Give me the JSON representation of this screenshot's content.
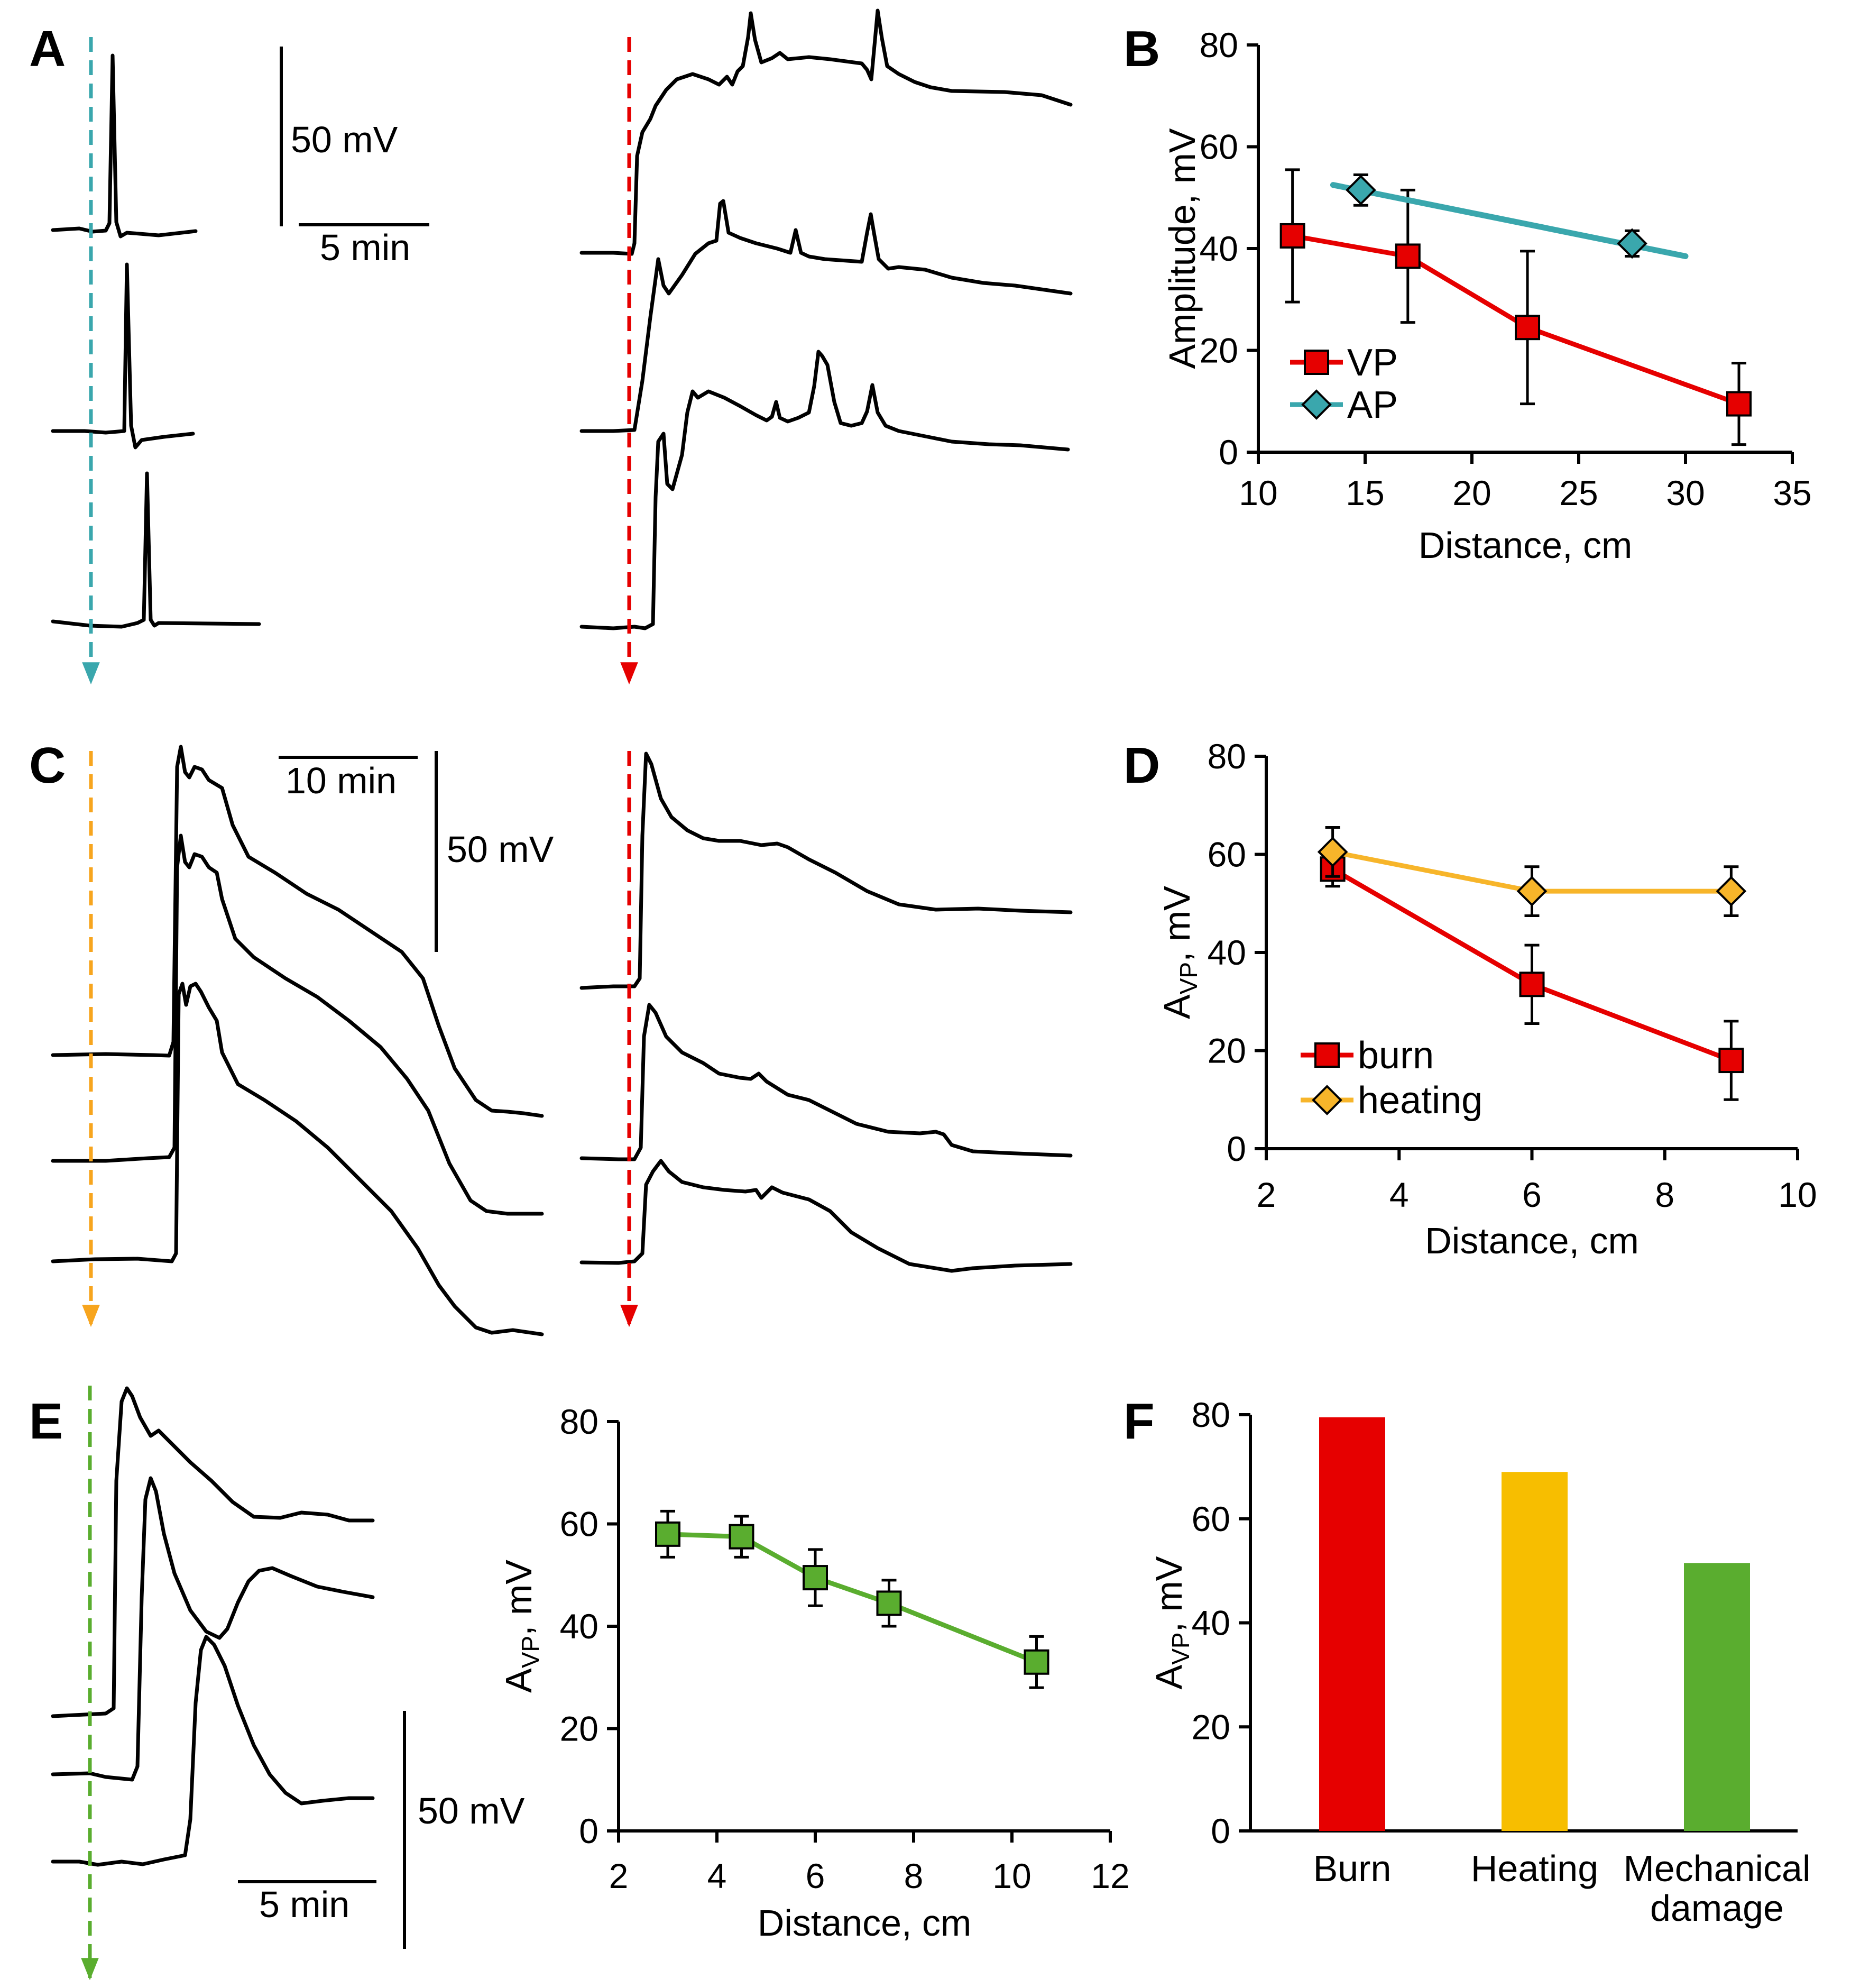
{
  "panels": {
    "A": "A",
    "B": "B",
    "C": "C",
    "D": "D",
    "E": "E",
    "F": "F"
  },
  "scale_bars": {
    "A_voltage": "50 mV",
    "A_time": "5 min",
    "C_time": "10 min",
    "C_voltage": "50 mV",
    "E_voltage": "50 mV",
    "E_time": "5 min"
  },
  "colors": {
    "VP": "#e60000",
    "AP": "#3aa7ad",
    "burn": "#e60000",
    "heating": "#f7b52a",
    "mechanical": "#5aad2f",
    "arrow_A": "#3aa7ad",
    "arrow_red": "#e60000",
    "arrow_C": "#f7a51e",
    "arrow_E": "#5aad2f"
  },
  "chart_data": [
    {
      "id": "B",
      "type": "line",
      "xlabel": "Distance, cm",
      "ylabel": "Amplitude, mV",
      "xlim": [
        10,
        35
      ],
      "ylim": [
        0,
        80
      ],
      "xticks": [
        "10",
        "15",
        "20",
        "25",
        "30",
        "35"
      ],
      "yticks": [
        "0",
        "20",
        "40",
        "60",
        "80"
      ],
      "series": [
        {
          "name": "VP",
          "x": [
            11.6,
            17.0,
            22.6,
            32.5
          ],
          "y": [
            42.5,
            38.5,
            24.5,
            9.5
          ],
          "err": [
            13,
            13,
            15,
            8
          ],
          "marker": "square",
          "color": "#e60000"
        },
        {
          "name": "AP",
          "x": [
            14.8,
            27.5
          ],
          "y": [
            51.5,
            41.0
          ],
          "err": [
            3,
            2.5
          ],
          "marker": "diamond",
          "color": "#3aa7ad",
          "fit_x": [
            13.5,
            30.0
          ],
          "fit_y": [
            52.5,
            38.5
          ]
        }
      ],
      "legend": "bottom-left"
    },
    {
      "id": "D",
      "type": "line",
      "xlabel": "Distance, cm",
      "ylabel": "A",
      "ylabel_sub": "VP",
      "ylabel_suffix": ", mV",
      "xlim": [
        2,
        10
      ],
      "ylim": [
        0,
        80
      ],
      "xticks": [
        "2",
        "4",
        "6",
        "8",
        "10"
      ],
      "yticks": [
        "0",
        "20",
        "40",
        "60",
        "80"
      ],
      "series": [
        {
          "name": "burn",
          "x": [
            3,
            6,
            9
          ],
          "y": [
            57,
            33.5,
            18
          ],
          "err": [
            3.5,
            8,
            8
          ],
          "marker": "square",
          "color": "#e60000"
        },
        {
          "name": "heating",
          "x": [
            3,
            6,
            9
          ],
          "y": [
            60.5,
            52.5,
            52.5
          ],
          "err": [
            5,
            5,
            5
          ],
          "marker": "diamond",
          "color": "#f7b52a"
        }
      ],
      "legend": "bottom-left"
    },
    {
      "id": "E",
      "type": "line",
      "xlabel": "Distance, cm",
      "ylabel": "A",
      "ylabel_sub": "VP",
      "ylabel_suffix": ", mV",
      "xlim": [
        2,
        12
      ],
      "ylim": [
        0,
        80
      ],
      "xticks": [
        "2",
        "4",
        "6",
        "8",
        "10",
        "12"
      ],
      "yticks": [
        "0",
        "20",
        "40",
        "60",
        "80"
      ],
      "series": [
        {
          "name": "mechanical damage",
          "x": [
            3,
            4.5,
            6,
            7.5,
            10.5
          ],
          "y": [
            58,
            57.5,
            49.5,
            44.5,
            33
          ],
          "err": [
            4.5,
            4,
            5.5,
            4.5,
            5
          ],
          "marker": "square",
          "color": "#5aad2f"
        }
      ]
    },
    {
      "id": "F",
      "type": "bar",
      "ylabel": "A",
      "ylabel_sub": "VP",
      "ylabel_suffix": ", mV",
      "ylim": [
        0,
        80
      ],
      "yticks": [
        "0",
        "20",
        "40",
        "60",
        "80"
      ],
      "categories": [
        "Burn",
        "Heating",
        "Mechanical damage"
      ],
      "category_lines": [
        [
          "Burn"
        ],
        [
          "Heating"
        ],
        [
          "Mechanical",
          "damage"
        ]
      ],
      "values": [
        79.5,
        69,
        51.5
      ],
      "colors": [
        "#e60000",
        "#f7be00",
        "#5aad2f"
      ]
    }
  ]
}
